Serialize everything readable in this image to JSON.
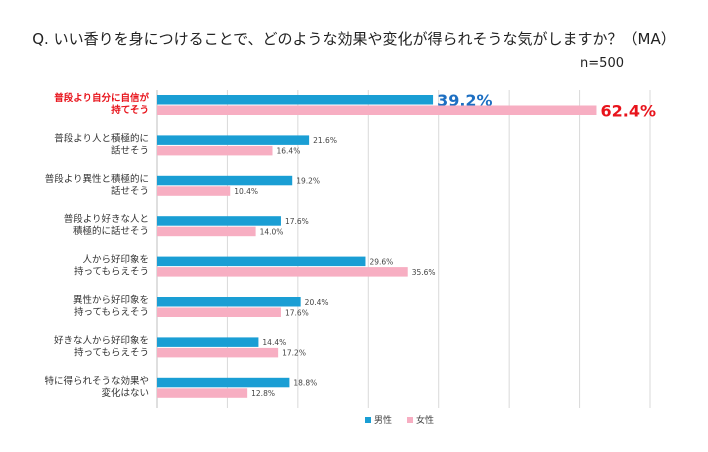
{
  "chart_data": {
    "type": "bar",
    "orientation": "horizontal",
    "title": "Q. いい香りを身につけることで、どのような効果や変化が得られそうな気がしますか？（MA）",
    "sample_size": "n=500",
    "xlim": [
      0,
      70
    ],
    "grid": true,
    "legend_position": "bottom",
    "highlight_index": 0,
    "categories": [
      [
        "普段より自分に自信が",
        "持てそう"
      ],
      [
        "普段より人と積極的に",
        "話せそう"
      ],
      [
        "普段より異性と積極的に",
        "話せそう"
      ],
      [
        "普段より好きな人と",
        "積極的に話せそう"
      ],
      [
        "人から好印象を",
        "持ってもらえそう"
      ],
      [
        "異性から好印象を",
        "持ってもらえそう"
      ],
      [
        "好きな人から好印象を",
        "持ってもらえそう"
      ],
      [
        "特に得られそうな効果や",
        "変化はない"
      ]
    ],
    "series": [
      {
        "name": "男性",
        "color": "#1a9ed4",
        "highlight_color": "#1d6fc2",
        "values": [
          39.2,
          21.6,
          19.2,
          17.6,
          29.6,
          20.4,
          14.4,
          18.8
        ],
        "labels": [
          "39.2%",
          "21.6%",
          "19.2%",
          "17.6%",
          "29.6%",
          "20.4%",
          "14.4%",
          "18.8%"
        ]
      },
      {
        "name": "女性",
        "color": "#f7aec2",
        "highlight_color": "#e8131b",
        "values": [
          62.4,
          16.4,
          10.4,
          14.0,
          35.6,
          17.6,
          17.2,
          12.8
        ],
        "labels": [
          "62.4%",
          "16.4%",
          "10.4%",
          "14.0%",
          "35.6%",
          "17.6%",
          "17.2%",
          "12.8%"
        ]
      }
    ]
  }
}
